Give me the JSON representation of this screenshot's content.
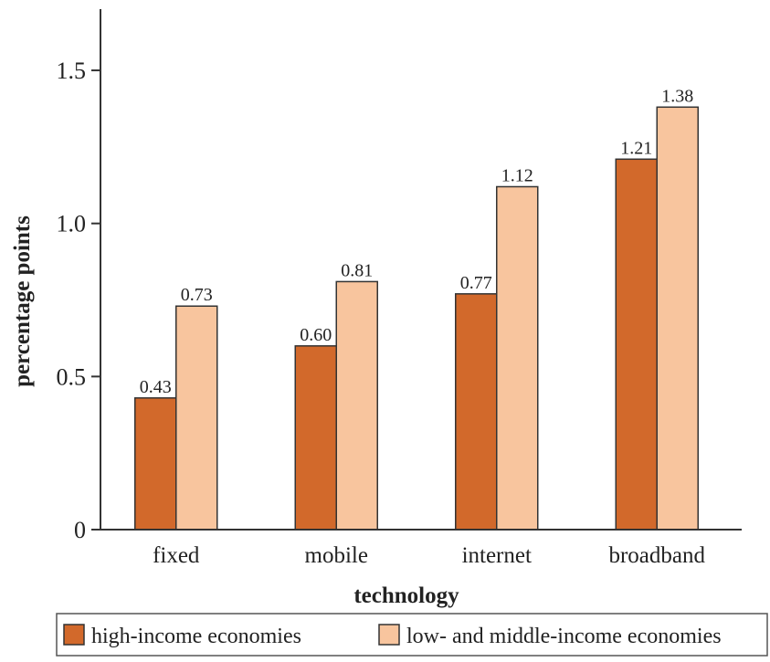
{
  "chart_data": {
    "type": "bar",
    "title": "",
    "xlabel": "technology",
    "ylabel": "percentage points",
    "categories": [
      "fixed",
      "mobile",
      "internet",
      "broadband"
    ],
    "series": [
      {
        "name": "high-income economies",
        "color": "#d2692b",
        "values": [
          0.43,
          0.6,
          0.77,
          1.21
        ],
        "labels": [
          "0.43",
          "0.60",
          "0.77",
          "1.21"
        ]
      },
      {
        "name": "low- and middle-income economies",
        "color": "#f8c59e",
        "values": [
          0.73,
          0.81,
          1.12,
          1.38
        ],
        "labels": [
          "0.73",
          "0.81",
          "1.12",
          "1.38"
        ]
      }
    ],
    "ylim": [
      0,
      1.7
    ],
    "yticks": [
      0,
      0.5,
      1.0,
      1.5
    ],
    "ytick_labels": [
      "0",
      "0.5",
      "1.0",
      "1.5"
    ],
    "grid": false,
    "legend_position": "bottom"
  }
}
